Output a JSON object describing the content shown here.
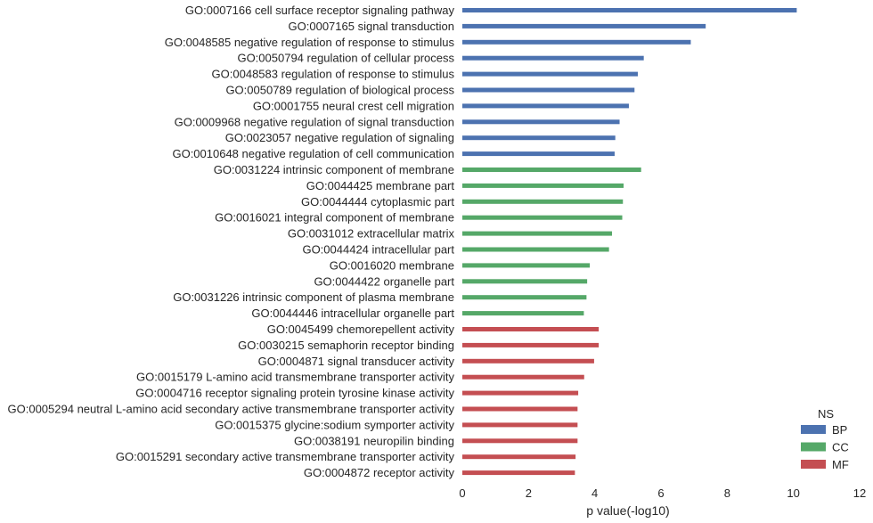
{
  "chart_data": {
    "type": "bar",
    "orientation": "horizontal",
    "xlabel": "p value(-log10)",
    "xlim": [
      0,
      12
    ],
    "xticks": [
      0,
      2,
      4,
      6,
      8,
      10,
      12
    ],
    "grid": false,
    "legend": {
      "title": "NS",
      "placement": "bottom-right",
      "entries": [
        {
          "name": "BP",
          "color": "#4c72b0"
        },
        {
          "name": "CC",
          "color": "#55a868"
        },
        {
          "name": "MF",
          "color": "#c44e52"
        }
      ]
    },
    "categories": [
      "GO:0007166 cell surface receptor signaling pathway",
      "GO:0007165 signal transduction",
      "GO:0048585 negative regulation of response to stimulus",
      "GO:0050794 regulation of cellular process",
      "GO:0048583 regulation of response to stimulus",
      "GO:0050789 regulation of biological process",
      "GO:0001755 neural crest cell migration",
      "GO:0009968 negative regulation of signal transduction",
      "GO:0023057 negative regulation of signaling",
      "GO:0010648 negative regulation of cell communication",
      "GO:0031224 intrinsic component of membrane",
      "GO:0044425 membrane part",
      "GO:0044444 cytoplasmic part",
      "GO:0016021 integral component of membrane",
      "GO:0031012 extracellular matrix",
      "GO:0044424 intracellular part",
      "GO:0016020 membrane",
      "GO:0044422 organelle part",
      "GO:0031226 intrinsic component of plasma membrane",
      "GO:0044446 intracellular organelle part",
      "GO:0045499 chemorepellent activity",
      "GO:0030215 semaphorin receptor binding",
      "GO:0004871 signal transducer activity",
      "GO:0015179 L-amino acid transmembrane transporter activity",
      "GO:0004716 receptor signaling protein tyrosine kinase activity",
      "GO:0005294 neutral L-amino acid secondary active transmembrane transporter activity",
      "GO:0015375 glycine:sodium symporter activity",
      "GO:0038191 neuropilin binding",
      "GO:0015291 secondary active transmembrane transporter activity",
      "GO:0004872 receptor activity"
    ],
    "values": [
      10.1,
      7.35,
      6.9,
      5.48,
      5.3,
      5.2,
      5.03,
      4.75,
      4.62,
      4.6,
      5.4,
      4.87,
      4.85,
      4.83,
      4.52,
      4.43,
      3.85,
      3.77,
      3.75,
      3.67,
      4.12,
      4.12,
      3.98,
      3.68,
      3.5,
      3.48,
      3.48,
      3.48,
      3.42,
      3.4
    ],
    "groups": [
      "BP",
      "BP",
      "BP",
      "BP",
      "BP",
      "BP",
      "BP",
      "BP",
      "BP",
      "BP",
      "CC",
      "CC",
      "CC",
      "CC",
      "CC",
      "CC",
      "CC",
      "CC",
      "CC",
      "CC",
      "MF",
      "MF",
      "MF",
      "MF",
      "MF",
      "MF",
      "MF",
      "MF",
      "MF",
      "MF"
    ]
  }
}
